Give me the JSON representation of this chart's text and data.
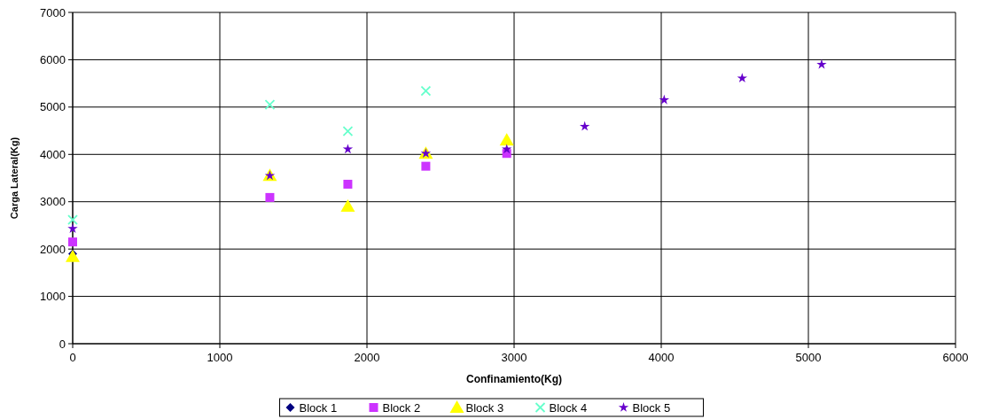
{
  "chart_data": {
    "type": "scatter",
    "xlabel": "Confinamiento(Kg)",
    "ylabel": "Carga Lateral(Kg)",
    "xlim": [
      0,
      6000
    ],
    "xticks": [
      0,
      1000,
      2000,
      3000,
      4000,
      5000,
      6000
    ],
    "ylim": [
      0,
      7000
    ],
    "yticks": [
      0,
      1000,
      2000,
      3000,
      4000,
      5000,
      6000,
      7000
    ],
    "grid": true,
    "legend": "bottom",
    "series": [
      {
        "name": "Block 1",
        "color": "#000080",
        "marker": "diamond",
        "x": [
          0
        ],
        "values": [
          1900
        ]
      },
      {
        "name": "Block 2",
        "color": "#cc33ff",
        "marker": "square",
        "x": [
          0,
          1340,
          1870,
          2400,
          2950
        ],
        "values": [
          2150,
          3090,
          3370,
          3750,
          4020
        ]
      },
      {
        "name": "Block 3",
        "color": "#ffff00",
        "marker": "triangle",
        "x": [
          0,
          1340,
          1870,
          2400,
          2950
        ],
        "values": [
          1840,
          3550,
          2900,
          4020,
          4300
        ]
      },
      {
        "name": "Block 4",
        "color": "#66ffcc",
        "marker": "cross",
        "x": [
          0,
          1340,
          1870,
          2400
        ],
        "values": [
          2620,
          5050,
          4490,
          5340
        ]
      },
      {
        "name": "Block 5",
        "color": "#6600cc",
        "marker": "star",
        "x": [
          0,
          1340,
          1870,
          2400,
          2950,
          3480,
          4020,
          4550,
          5090
        ],
        "values": [
          2430,
          3550,
          4110,
          4020,
          4110,
          4590,
          5150,
          5610,
          5900
        ]
      }
    ]
  }
}
